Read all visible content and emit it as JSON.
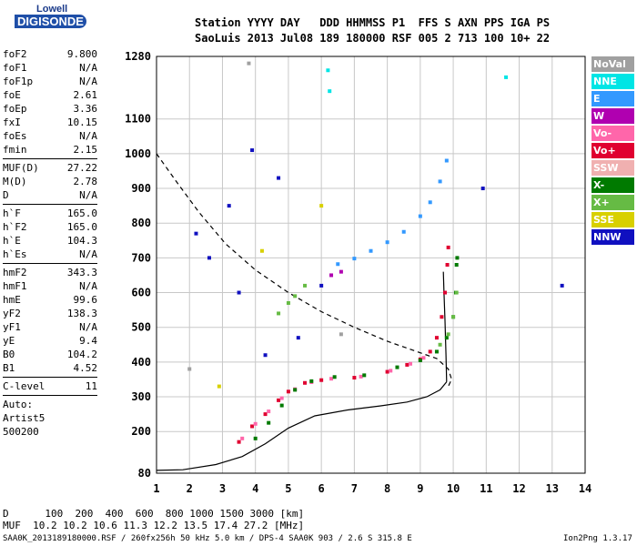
{
  "logo": {
    "line1": "Lowell",
    "line2": "DIGISONDE"
  },
  "header": {
    "line1": "Station YYYY DAY   DDD HHMMSS P1  FFS S AXN PPS IGA PS",
    "line2": "SaoLuis 2013 Jul08 189 180000 RSF 005 2 713 100 10+ 22"
  },
  "params": [
    [
      {
        "k": "foF2",
        "v": "9.800"
      },
      {
        "k": "foF1",
        "v": "N/A"
      },
      {
        "k": "foF1p",
        "v": "N/A"
      },
      {
        "k": "foE",
        "v": "2.61"
      },
      {
        "k": "foEp",
        "v": "3.36"
      },
      {
        "k": "fxI",
        "v": "10.15"
      },
      {
        "k": "foEs",
        "v": "N/A"
      },
      {
        "k": "fmin",
        "v": "2.15"
      }
    ],
    [
      {
        "k": "MUF(D)",
        "v": "27.22"
      },
      {
        "k": "M(D)",
        "v": "2.78"
      },
      {
        "k": "D",
        "v": "N/A"
      }
    ],
    [
      {
        "k": "h`F",
        "v": "165.0"
      },
      {
        "k": "h`F2",
        "v": "165.0"
      },
      {
        "k": "h`E",
        "v": "104.3"
      },
      {
        "k": "h`Es",
        "v": "N/A"
      }
    ],
    [
      {
        "k": "hmF2",
        "v": "343.3"
      },
      {
        "k": "hmF1",
        "v": "N/A"
      },
      {
        "k": "hmE",
        "v": "99.6"
      },
      {
        "k": "yF2",
        "v": "138.3"
      },
      {
        "k": "yF1",
        "v": "N/A"
      },
      {
        "k": "yE",
        "v": "9.4"
      },
      {
        "k": "B0",
        "v": "104.2"
      },
      {
        "k": "B1",
        "v": "4.52"
      }
    ],
    [
      {
        "k": "C-level",
        "v": "11"
      }
    ],
    [
      {
        "k": "Auto:",
        "v": ""
      },
      {
        "k": "Artist5",
        "v": ""
      },
      {
        "k": "500200",
        "v": ""
      }
    ]
  ],
  "legend": [
    {
      "label": "NoVal",
      "color": "#a0a0a0"
    },
    {
      "label": "NNE",
      "color": "#00e5e5"
    },
    {
      "label": "E",
      "color": "#3399ff"
    },
    {
      "label": "W",
      "color": "#b000b0"
    },
    {
      "label": "Vo-",
      "color": "#ff66aa"
    },
    {
      "label": "Vo+",
      "color": "#e00030"
    },
    {
      "label": "SSW",
      "color": "#f0b0b0"
    },
    {
      "label": "X-",
      "color": "#007a00"
    },
    {
      "label": "X+",
      "color": "#66bb44"
    },
    {
      "label": "SSE",
      "color": "#d8d000"
    },
    {
      "label": "NNW",
      "color": "#1010c0"
    }
  ],
  "bottom": {
    "d_line": "D      100  200  400  600  800 1000 1500 3000 [km]",
    "muf_line": "MUF  10.2 10.2 10.6 11.3 12.2 13.5 17.4 27.2 [MHz]",
    "footer_left": "SAA0K_2013189180000.RSF / 260fx256h 50 kHz 5.0 km / DPS-4 SAA0K 903 / 2.6 S 315.8 E",
    "footer_right": "Ion2Png 1.3.17"
  },
  "chart_data": {
    "type": "scatter",
    "xlim": [
      1,
      14
    ],
    "ylim": [
      80,
      1280
    ],
    "x_ticks": [
      1,
      2,
      3,
      4,
      5,
      6,
      7,
      8,
      9,
      10,
      11,
      12,
      13,
      14
    ],
    "y_ticks": [
      80,
      200,
      300,
      400,
      500,
      600,
      700,
      800,
      900,
      1000,
      1100,
      1280
    ],
    "grid": true,
    "legend_placement": "right",
    "series": [
      {
        "name": "Vo+",
        "color": "#e00030",
        "points": [
          [
            3.5,
            170
          ],
          [
            3.9,
            215
          ],
          [
            4.3,
            250
          ],
          [
            4.7,
            290
          ],
          [
            5.0,
            315
          ],
          [
            5.5,
            340
          ],
          [
            6.0,
            348
          ],
          [
            7.0,
            355
          ],
          [
            8.0,
            372
          ],
          [
            8.6,
            392
          ],
          [
            9.0,
            408
          ],
          [
            9.3,
            430
          ],
          [
            9.5,
            470
          ],
          [
            9.65,
            530
          ],
          [
            9.75,
            600
          ],
          [
            9.82,
            680
          ],
          [
            9.85,
            730
          ]
        ]
      },
      {
        "name": "Vo-",
        "color": "#ff66aa",
        "points": [
          [
            3.6,
            180
          ],
          [
            4.0,
            222
          ],
          [
            4.4,
            258
          ],
          [
            4.8,
            296
          ],
          [
            5.2,
            322
          ],
          [
            5.7,
            342
          ],
          [
            6.3,
            352
          ],
          [
            7.2,
            358
          ],
          [
            8.1,
            375
          ],
          [
            8.7,
            395
          ],
          [
            9.1,
            412
          ]
        ]
      },
      {
        "name": "X-",
        "color": "#007a00",
        "points": [
          [
            4.0,
            180
          ],
          [
            4.4,
            225
          ],
          [
            4.8,
            275
          ],
          [
            5.2,
            320
          ],
          [
            5.7,
            345
          ],
          [
            6.4,
            357
          ],
          [
            7.3,
            362
          ],
          [
            8.3,
            385
          ],
          [
            9.0,
            405
          ],
          [
            9.5,
            430
          ],
          [
            9.8,
            470
          ],
          [
            10.0,
            530
          ],
          [
            10.08,
            600
          ],
          [
            10.1,
            680
          ],
          [
            10.12,
            700
          ]
        ]
      },
      {
        "name": "X+",
        "color": "#66bb44",
        "points": [
          [
            4.7,
            540
          ],
          [
            5.0,
            570
          ],
          [
            5.2,
            590
          ],
          [
            5.5,
            620
          ],
          [
            9.6,
            450
          ],
          [
            9.85,
            480
          ],
          [
            10.0,
            530
          ],
          [
            10.1,
            600
          ]
        ]
      },
      {
        "name": "E",
        "color": "#3399ff",
        "points": [
          [
            6.5,
            682
          ],
          [
            7.0,
            698
          ],
          [
            7.5,
            720
          ],
          [
            8.0,
            745
          ],
          [
            8.5,
            775
          ],
          [
            9.0,
            820
          ],
          [
            9.3,
            860
          ],
          [
            9.6,
            920
          ],
          [
            9.8,
            980
          ]
        ]
      },
      {
        "name": "W",
        "color": "#b000b0",
        "points": [
          [
            6.3,
            650
          ],
          [
            6.6,
            660
          ]
        ]
      },
      {
        "name": "NNE",
        "color": "#00e5e5",
        "points": [
          [
            6.2,
            1240
          ],
          [
            6.25,
            1180
          ],
          [
            11.6,
            1220
          ]
        ]
      },
      {
        "name": "SSE",
        "color": "#d8d000",
        "points": [
          [
            2.9,
            330
          ],
          [
            4.2,
            720
          ],
          [
            6.0,
            850
          ]
        ]
      },
      {
        "name": "NNW",
        "color": "#1010c0",
        "points": [
          [
            2.2,
            770
          ],
          [
            2.6,
            700
          ],
          [
            3.2,
            850
          ],
          [
            3.5,
            600
          ],
          [
            3.9,
            1010
          ],
          [
            4.3,
            420
          ],
          [
            4.7,
            930
          ],
          [
            5.3,
            470
          ],
          [
            6.0,
            620
          ],
          [
            13.3,
            620
          ],
          [
            10.9,
            900
          ]
        ]
      },
      {
        "name": "NoVal",
        "color": "#a0a0a0",
        "points": [
          [
            2.0,
            380
          ],
          [
            3.8,
            1260
          ],
          [
            6.6,
            480
          ]
        ]
      }
    ],
    "lines": [
      {
        "name": "profile",
        "style": "solid",
        "points": [
          [
            1.0,
            88
          ],
          [
            1.8,
            90
          ],
          [
            2.8,
            105
          ],
          [
            3.6,
            128
          ],
          [
            4.3,
            165
          ],
          [
            5.0,
            210
          ],
          [
            5.8,
            245
          ],
          [
            6.8,
            262
          ],
          [
            7.8,
            274
          ],
          [
            8.6,
            285
          ],
          [
            9.2,
            300
          ],
          [
            9.6,
            320
          ],
          [
            9.8,
            343
          ]
        ]
      },
      {
        "name": "profile-upper",
        "style": "solid",
        "points": [
          [
            9.8,
            343
          ],
          [
            9.78,
            420
          ],
          [
            9.75,
            520
          ],
          [
            9.72,
            600
          ],
          [
            9.7,
            660
          ]
        ]
      },
      {
        "name": "muf-curve",
        "style": "dashed",
        "points": [
          [
            1.0,
            1000
          ],
          [
            1.6,
            920
          ],
          [
            2.3,
            830
          ],
          [
            3.1,
            740
          ],
          [
            4.0,
            665
          ],
          [
            5.0,
            600
          ],
          [
            6.0,
            545
          ],
          [
            7.0,
            500
          ],
          [
            8.0,
            460
          ],
          [
            8.9,
            430
          ],
          [
            9.5,
            410
          ],
          [
            9.85,
            380
          ],
          [
            9.95,
            350
          ],
          [
            9.85,
            330
          ]
        ]
      }
    ]
  }
}
